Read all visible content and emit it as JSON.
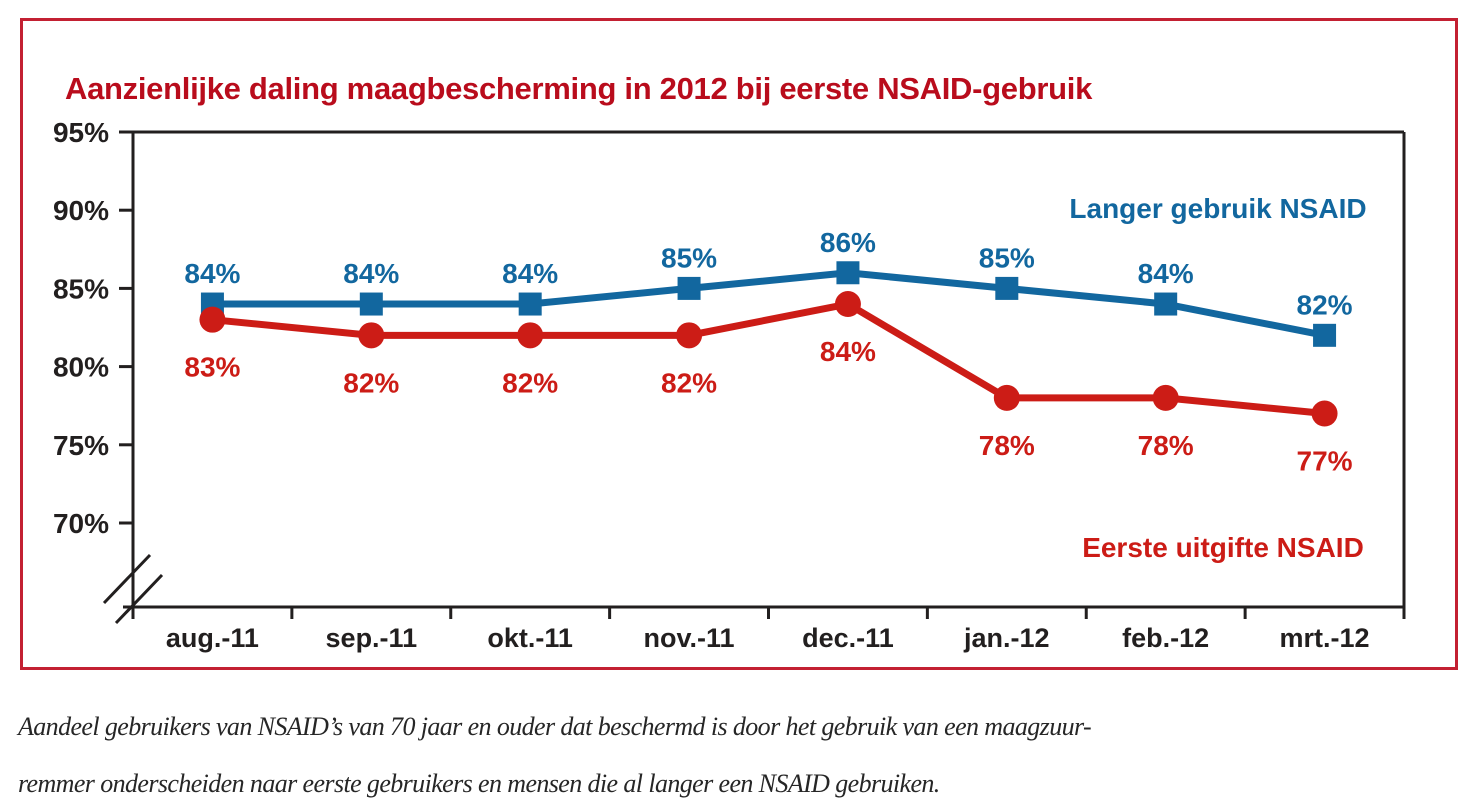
{
  "panel": {
    "title": "Aanzienlijke daling maagbescherming in 2012 bij eerste NSAID-gebruik"
  },
  "chart_data": {
    "type": "line",
    "categories": [
      "aug.-11",
      "sep.-11",
      "okt.-11",
      "nov.-11",
      "dec.-11",
      "jan.-12",
      "feb.-12",
      "mrt.-12"
    ],
    "series": [
      {
        "name": "Langer gebruik NSAID",
        "color": "#12679f",
        "marker": "square",
        "label_position": "above",
        "values": [
          84,
          84,
          84,
          85,
          86,
          85,
          84,
          82
        ]
      },
      {
        "name": "Eerste uitgifte NSAID",
        "color": "#cc1c16",
        "marker": "circle",
        "label_position": "below",
        "values": [
          83,
          82,
          82,
          82,
          84,
          78,
          78,
          77
        ]
      }
    ],
    "value_label_suffix": "%",
    "y_ticks": [
      "95%",
      "90%",
      "85%",
      "80%",
      "75%",
      "70%"
    ],
    "y_tick_values": [
      95,
      90,
      85,
      80,
      75,
      70
    ],
    "ylim": [
      70,
      95
    ],
    "axis_break": true,
    "grid": false,
    "legend_position": "inside-right",
    "legend": [
      {
        "text": "Langer gebruik NSAID",
        "color": "#12679f"
      },
      {
        "text": "Eerste uitgifte NSAID",
        "color": "#cc1c16"
      }
    ]
  },
  "caption": {
    "line1": "Aandeel gebruikers van NSAID’s van 70 jaar en ouder dat beschermd is door het gebruik van een maagzuur-",
    "line2": "remmer onderscheiden naar eerste gebruikers en mensen die al langer een NSAID gebruiken."
  },
  "colors": {
    "title": "#b90c1c",
    "frame_border": "#c32032",
    "axis": "#221f1f",
    "series_blue": "#12679f",
    "series_red": "#cc1c16",
    "caption_text": "#262626"
  }
}
